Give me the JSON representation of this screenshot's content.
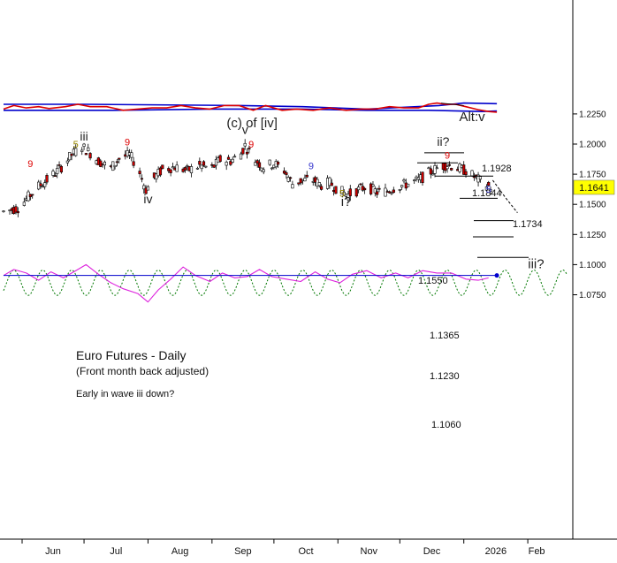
{
  "chart_data": {
    "type": "candlestick",
    "title": "Euro Futures - Daily",
    "subtitle": "(Front month back adjusted)",
    "note": "Early in wave iii down?",
    "ylim": [
      1.072,
      1.233
    ],
    "y_ticks": [
      "1.0750",
      "1.1000",
      "1.1250",
      "1.1500",
      "1.1750",
      "1.2000",
      "1.2250"
    ],
    "x_ticks": [
      "Jun",
      "Jul",
      "Aug",
      "Sep",
      "Oct",
      "Nov",
      "Dec",
      "2026",
      "Feb"
    ],
    "last_price": "1.1641",
    "colors": {
      "up_candle": "#ffffff",
      "down_candle": "#cc0000",
      "band": "#0000cc",
      "osc_red": "#dd0000",
      "osc_magenta": "#dd22dd",
      "cycle_green": "#007700",
      "price_tag": "#ffff00",
      "count_red": "#dd0000",
      "count_gold": "#998800",
      "count_blue": "#3333cc"
    },
    "wave_labels": [
      {
        "text": "iii",
        "date": "2025-07-01",
        "price": 1.203
      },
      {
        "text": "iv",
        "date": "2025-08-01",
        "price": 1.151
      },
      {
        "text": "(c) of [iv]",
        "date": "2025-09-17",
        "price": 1.214
      },
      {
        "text": "v",
        "date": "2025-09-17",
        "price": 1.2085
      },
      {
        "text": "i?",
        "date": "2025-11-05",
        "price": 1.1485
      },
      {
        "text": "ii?",
        "date": "2025-12-22",
        "price": 1.1985
      },
      {
        "text": "Alt:v",
        "date": "2026-01-05",
        "price": 1.219
      },
      {
        "text": "iii?",
        "date": "2026-02-05",
        "price": 1.097
      }
    ],
    "count_labels": [
      {
        "text": "9",
        "date": "2025-06-05",
        "price": 1.181,
        "color": "count_red"
      },
      {
        "text": "5",
        "date": "2025-06-27",
        "price": 1.197,
        "color": "count_gold"
      },
      {
        "text": "9",
        "date": "2025-07-22",
        "price": 1.199,
        "color": "count_red"
      },
      {
        "text": "9",
        "date": "2025-09-20",
        "price": 1.197,
        "color": "count_red"
      },
      {
        "text": "9",
        "date": "2025-10-19",
        "price": 1.179,
        "color": "count_blue"
      },
      {
        "text": "5",
        "date": "2025-11-03",
        "price": 1.1565,
        "color": "count_gold"
      },
      {
        "text": "9",
        "date": "2025-12-24",
        "price": 1.1878,
        "color": "count_red"
      },
      {
        "text": "5",
        "date": "2026-01-13",
        "price": 1.1595,
        "color": "count_blue"
      }
    ],
    "targets": [
      {
        "label": "1.1928",
        "price": 1.1928
      },
      {
        "label": "1.1844",
        "price": 1.1844
      },
      {
        "label": "1.1734",
        "price": 1.1734
      },
      {
        "label": "1.1550",
        "price": 1.155
      },
      {
        "label": "1.1365",
        "price": 1.1365
      },
      {
        "label": "1.1230",
        "price": 1.123
      },
      {
        "label": "1.1060",
        "price": 1.106
      }
    ],
    "price_path": [
      [
        "2025-05-23",
        1.144
      ],
      [
        "2025-05-30",
        1.147
      ],
      [
        "2025-06-04",
        1.156
      ],
      [
        "2025-06-09",
        1.165
      ],
      [
        "2025-06-13",
        1.17
      ],
      [
        "2025-06-19",
        1.179
      ],
      [
        "2025-06-25",
        1.191
      ],
      [
        "2025-06-30",
        1.198
      ],
      [
        "2025-07-03",
        1.194
      ],
      [
        "2025-07-08",
        1.186
      ],
      [
        "2025-07-14",
        1.18
      ],
      [
        "2025-07-18",
        1.188
      ],
      [
        "2025-07-23",
        1.191
      ],
      [
        "2025-07-27",
        1.181
      ],
      [
        "2025-07-31",
        1.162
      ],
      [
        "2025-08-04",
        1.172
      ],
      [
        "2025-08-08",
        1.179
      ],
      [
        "2025-08-14",
        1.181
      ],
      [
        "2025-08-20",
        1.178
      ],
      [
        "2025-08-26",
        1.182
      ],
      [
        "2025-09-01",
        1.18
      ],
      [
        "2025-09-05",
        1.187
      ],
      [
        "2025-09-10",
        1.186
      ],
      [
        "2025-09-15",
        1.192
      ],
      [
        "2025-09-17",
        1.199
      ],
      [
        "2025-09-21",
        1.188
      ],
      [
        "2025-09-26",
        1.181
      ],
      [
        "2025-10-01",
        1.184
      ],
      [
        "2025-10-06",
        1.178
      ],
      [
        "2025-10-10",
        1.167
      ],
      [
        "2025-10-15",
        1.17
      ],
      [
        "2025-10-20",
        1.17
      ],
      [
        "2025-10-24",
        1.166
      ],
      [
        "2025-10-28",
        1.168
      ],
      [
        "2025-11-01",
        1.162
      ],
      [
        "2025-11-06",
        1.158
      ],
      [
        "2025-11-11",
        1.162
      ],
      [
        "2025-11-15",
        1.165
      ],
      [
        "2025-11-20",
        1.16
      ],
      [
        "2025-11-25",
        1.161
      ],
      [
        "2025-11-30",
        1.165
      ],
      [
        "2025-12-05",
        1.167
      ],
      [
        "2025-12-10",
        1.17
      ],
      [
        "2025-12-15",
        1.176
      ],
      [
        "2025-12-20",
        1.181
      ],
      [
        "2025-12-24",
        1.183
      ],
      [
        "2025-12-29",
        1.18
      ],
      [
        "2026-01-02",
        1.178
      ],
      [
        "2026-01-06",
        1.173
      ],
      [
        "2026-01-10",
        1.168
      ],
      [
        "2026-01-14",
        1.164
      ]
    ],
    "projection": [
      [
        "2026-01-15",
        1.17
      ],
      [
        "2026-01-21",
        1.156
      ],
      [
        "2026-01-27",
        1.143
      ]
    ],
    "band_upper": [
      [
        "2025-05-23",
        1.233
      ],
      [
        "2025-07-01",
        1.233
      ],
      [
        "2025-09-15",
        1.232
      ],
      [
        "2025-10-15",
        1.231
      ],
      [
        "2025-11-15",
        1.229
      ],
      [
        "2025-12-20",
        1.232
      ],
      [
        "2026-01-01",
        1.234
      ],
      [
        "2026-01-17",
        1.2335
      ]
    ],
    "band_lower": [
      [
        "2025-05-23",
        1.228
      ],
      [
        "2025-07-15",
        1.228
      ],
      [
        "2025-09-01",
        1.229
      ],
      [
        "2025-10-15",
        1.229
      ],
      [
        "2025-11-15",
        1.228
      ],
      [
        "2025-12-15",
        1.228
      ],
      [
        "2026-01-10",
        1.227
      ],
      [
        "2026-01-17",
        1.2275
      ]
    ],
    "upper_osc": [
      [
        "2025-05-23",
        1.229
      ],
      [
        "2025-05-28",
        1.232
      ],
      [
        "2025-06-03",
        1.23
      ],
      [
        "2025-06-09",
        1.231
      ],
      [
        "2025-06-14",
        1.2295
      ],
      [
        "2025-06-22",
        1.231
      ],
      [
        "2025-06-28",
        1.233
      ],
      [
        "2025-07-04",
        1.231
      ],
      [
        "2025-07-12",
        1.231
      ],
      [
        "2025-07-20",
        1.228
      ],
      [
        "2025-07-27",
        1.229
      ],
      [
        "2025-08-03",
        1.23
      ],
      [
        "2025-08-10",
        1.23
      ],
      [
        "2025-08-17",
        1.232
      ],
      [
        "2025-08-24",
        1.23
      ],
      [
        "2025-08-31",
        1.229
      ],
      [
        "2025-09-07",
        1.232
      ],
      [
        "2025-09-14",
        1.232
      ],
      [
        "2025-09-21",
        1.228
      ],
      [
        "2025-09-27",
        1.232
      ],
      [
        "2025-10-05",
        1.228
      ],
      [
        "2025-10-12",
        1.229
      ],
      [
        "2025-10-20",
        1.228
      ],
      [
        "2025-10-28",
        1.23
      ],
      [
        "2025-11-05",
        1.228
      ],
      [
        "2025-11-12",
        1.229
      ],
      [
        "2025-11-19",
        1.229
      ],
      [
        "2025-11-26",
        1.231
      ],
      [
        "2025-12-03",
        1.23
      ],
      [
        "2025-12-10",
        1.23
      ],
      [
        "2025-12-15",
        1.233
      ],
      [
        "2025-12-19",
        1.234
      ],
      [
        "2025-12-23",
        1.233
      ],
      [
        "2025-12-28",
        1.233
      ],
      [
        "2026-01-02",
        1.231
      ],
      [
        "2026-01-08",
        1.2285
      ],
      [
        "2026-01-13",
        1.227
      ],
      [
        "2026-01-17",
        1.2265
      ]
    ],
    "magenta_osc": [
      [
        "2025-05-23",
        1.091
      ],
      [
        "2025-05-28",
        1.096
      ],
      [
        "2025-06-03",
        1.093
      ],
      [
        "2025-06-09",
        1.087
      ],
      [
        "2025-06-15",
        1.094
      ],
      [
        "2025-06-21",
        1.089
      ],
      [
        "2025-06-28",
        1.096
      ],
      [
        "2025-07-02",
        1.1
      ],
      [
        "2025-07-08",
        1.092
      ],
      [
        "2025-07-14",
        1.085
      ],
      [
        "2025-07-20",
        1.08
      ],
      [
        "2025-07-27",
        1.076
      ],
      [
        "2025-08-01",
        1.069
      ],
      [
        "2025-08-06",
        1.079
      ],
      [
        "2025-08-12",
        1.088
      ],
      [
        "2025-08-18",
        1.098
      ],
      [
        "2025-08-24",
        1.091
      ],
      [
        "2025-08-31",
        1.086
      ],
      [
        "2025-09-06",
        1.093
      ],
      [
        "2025-09-12",
        1.089
      ],
      [
        "2025-09-18",
        1.09
      ],
      [
        "2025-09-24",
        1.096
      ],
      [
        "2025-09-30",
        1.09
      ],
      [
        "2025-10-07",
        1.088
      ],
      [
        "2025-10-14",
        1.086
      ],
      [
        "2025-10-21",
        1.094
      ],
      [
        "2025-10-27",
        1.088
      ],
      [
        "2025-11-02",
        1.085
      ],
      [
        "2025-11-08",
        1.092
      ],
      [
        "2025-11-15",
        1.095
      ],
      [
        "2025-11-22",
        1.089
      ],
      [
        "2025-11-29",
        1.093
      ],
      [
        "2025-12-05",
        1.089
      ],
      [
        "2025-12-12",
        1.095
      ],
      [
        "2025-12-19",
        1.093
      ],
      [
        "2025-12-26",
        1.093
      ],
      [
        "2026-01-02",
        1.088
      ],
      [
        "2026-01-08",
        1.087
      ],
      [
        "2026-01-13",
        1.089
      ]
    ],
    "cycle_wave": {
      "mean": 1.085,
      "amplitude": 0.0105,
      "period_days": 14,
      "phase_date": "2025-05-28",
      "start": "2025-05-23",
      "end": "2026-02-20"
    },
    "horizontal_ref": {
      "price": 1.091,
      "start": "2025-05-23",
      "end": "2026-01-17"
    }
  }
}
